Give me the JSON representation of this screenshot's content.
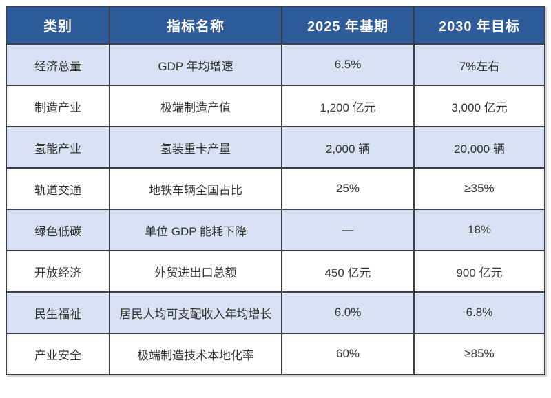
{
  "table": {
    "title": "development-indicators-table",
    "headers": [
      "类别",
      "指标名称",
      "2025 年基期",
      "2030 年目标"
    ],
    "rows": [
      [
        "经济总量",
        "GDP 年均增速",
        "6.5%",
        "7%左右"
      ],
      [
        "制造产业",
        "极端制造产值",
        "1,200 亿元",
        "3,000 亿元"
      ],
      [
        "氢能产业",
        "氢装重卡产量",
        "2,000 辆",
        "20,000 辆"
      ],
      [
        "轨道交通",
        "地铁车辆全国占比",
        "25%",
        "≥35%"
      ],
      [
        "绿色低碳",
        "单位 GDP 能耗下降",
        "—",
        "18%"
      ],
      [
        "开放经济",
        "外贸进出口总额",
        "450 亿元",
        "900 亿元"
      ],
      [
        "民生福祉",
        "居民人均可支配收入年均增长",
        "6.0%",
        "6.8%"
      ],
      [
        "产业安全",
        "极端制造技术本地化率",
        "60%",
        "≥85%"
      ]
    ],
    "colors": {
      "header_bg": "#2e5b9a",
      "header_text": "#ffffff",
      "row_alt_bg": "#d9e2f3",
      "row_bg": "#ffffff",
      "border": "#3c3c44",
      "cell_text": "#333333"
    }
  }
}
